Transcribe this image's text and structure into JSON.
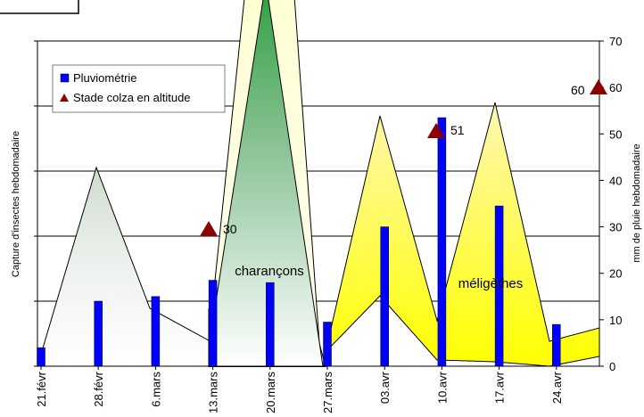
{
  "chart_data": {
    "type": "bar",
    "categories": [
      "21.févr",
      "28.févr",
      "6.mars",
      "13.mars",
      "20.mars",
      "27.mars",
      "03.avr",
      "10.avr",
      "17.avr",
      "24.avr"
    ],
    "left_axis": {
      "label": "Capture d'insectes hebdomadaire"
    },
    "right_axis": {
      "label": "mm de pluie hebdomadaire",
      "ylim": [
        0,
        70
      ],
      "ticks": [
        0,
        10,
        20,
        30,
        40,
        50,
        60,
        70
      ]
    },
    "grid": true,
    "series": [
      {
        "name": "Pluviométrie",
        "type": "bar",
        "axis": "right",
        "color": "#0000ff",
        "values": [
          4,
          14,
          15,
          18.5,
          18,
          9.5,
          30,
          53.5,
          34.5,
          9
        ]
      },
      {
        "name": "Stade colza en altitude",
        "type": "marker",
        "marker": "triangle",
        "color": "#8b0000",
        "points": [
          {
            "x": "13.mars",
            "label": "30"
          },
          {
            "x": "10.avr",
            "label": "51"
          },
          {
            "x": "24.avr",
            "label": "60"
          }
        ]
      }
    ],
    "areas": [
      {
        "label": "",
        "fill": "grey-gradient"
      },
      {
        "label": "charançons",
        "fill": "green-gradient"
      },
      {
        "label": "méligèthes",
        "fill": "yellow"
      }
    ],
    "legend_position": "top-left",
    "colors": {
      "bar": "#0000ff",
      "marker": "#8b0000",
      "grid": "#000000",
      "area_outline": "#000000"
    }
  }
}
